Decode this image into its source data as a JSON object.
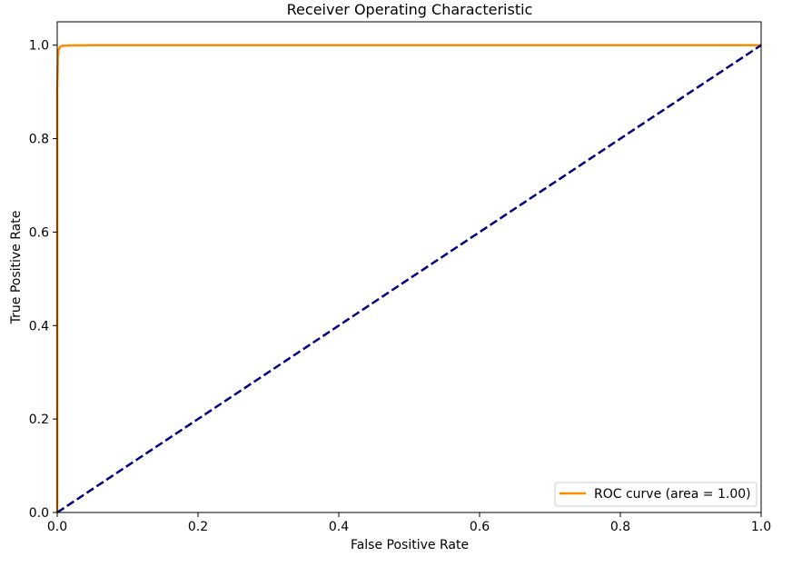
{
  "chart_data": {
    "type": "line",
    "title": "Receiver Operating Characteristic",
    "xlabel": "False Positive Rate",
    "ylabel": "True Positive Rate",
    "xlim": [
      0.0,
      1.0
    ],
    "ylim": [
      0.0,
      1.05
    ],
    "xticks": [
      "0.0",
      "0.2",
      "0.4",
      "0.6",
      "0.8",
      "1.0"
    ],
    "yticks": [
      "0.0",
      "0.2",
      "0.4",
      "0.6",
      "0.8",
      "1.0"
    ],
    "grid": false,
    "legend_position": "lower-right",
    "series": [
      {
        "name": "ROC curve (area = 1.00)",
        "color": "#ff8c00",
        "style": "solid",
        "x": [
          0.0,
          0.0,
          0.001,
          0.002,
          0.004,
          0.006,
          0.01,
          0.02,
          0.05,
          0.1,
          0.5,
          1.0
        ],
        "y": [
          0.0,
          0.9,
          0.975,
          0.99,
          0.996,
          0.998,
          0.999,
          0.9995,
          1.0,
          1.0,
          1.0,
          1.0
        ]
      },
      {
        "color": "#000080",
        "style": "dashed",
        "x": [
          0.0,
          1.0
        ],
        "y": [
          0.0,
          1.0
        ]
      }
    ]
  }
}
